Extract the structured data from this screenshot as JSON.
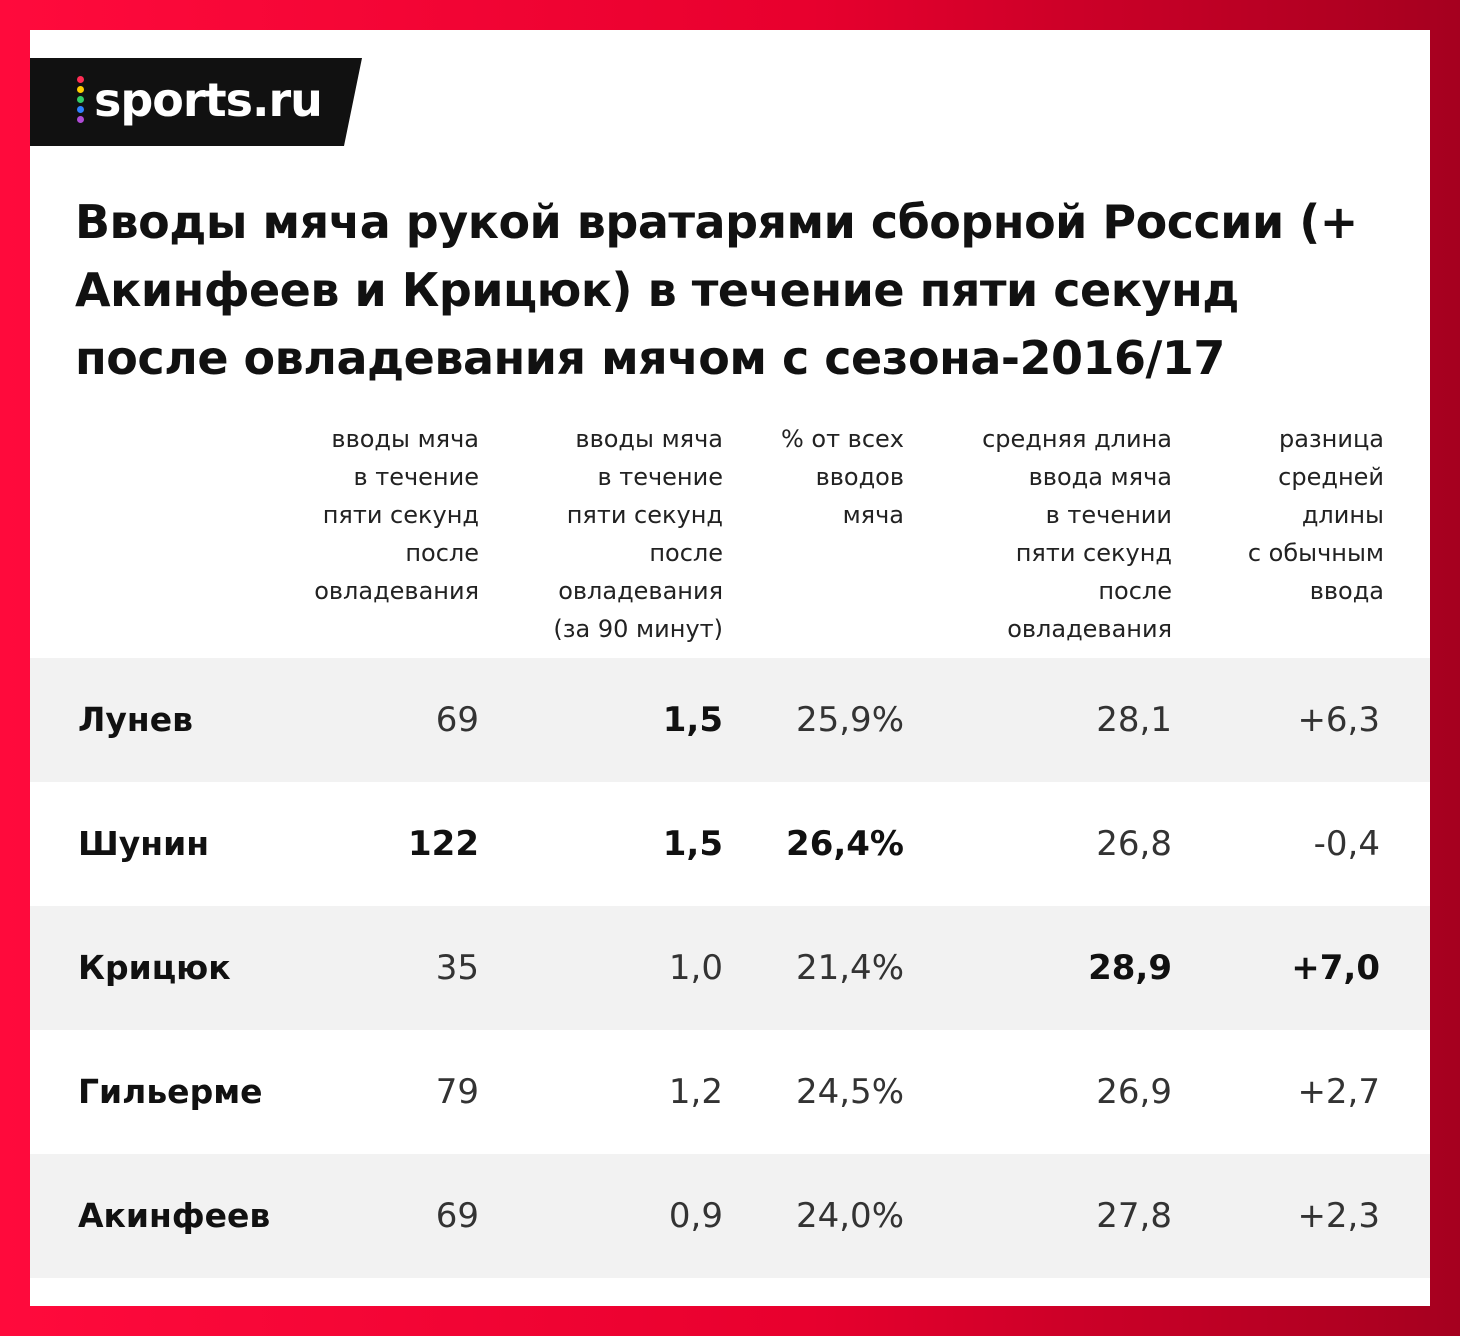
{
  "brand": {
    "logo_text": "sports.ru",
    "dot_colors": [
      "#ff2d55",
      "#ffcc00",
      "#33cc66",
      "#2f80ff",
      "#b04bd6"
    ]
  },
  "title": "Вводы мяча рукой вратарями сборной России (+ Акинфеев и Крицюк) в течение пяти секунд после овладевания мячом с сезона-2016/17",
  "columns": [
    "вводы мяча\nв течение\nпяти секунд\nпосле\nовладевания",
    "вводы мяча\nв течение\nпяти секунд\nпосле\nовладевания\n(за 90 минут)",
    "% от всех\nвводов\nмяча",
    "средняя длина\nввода мяча\nв течении\nпяти секунд\nпосле\nовладевания",
    "разница\nсредней\nдлины\nс обычным\nввода"
  ],
  "rows": [
    {
      "name": "Лунев",
      "cells": [
        "69",
        "1,5",
        "25,9%",
        "28,1",
        "+6,3"
      ],
      "bold": [
        false,
        true,
        false,
        false,
        false
      ]
    },
    {
      "name": "Шунин",
      "cells": [
        "122",
        "1,5",
        "26,4%",
        "26,8",
        "-0,4"
      ],
      "bold": [
        true,
        true,
        true,
        false,
        false
      ]
    },
    {
      "name": "Крицюк",
      "cells": [
        "35",
        "1,0",
        "21,4%",
        "28,9",
        "+7,0"
      ],
      "bold": [
        false,
        false,
        false,
        true,
        true
      ]
    },
    {
      "name": "Гильерме",
      "cells": [
        "79",
        "1,2",
        "24,5%",
        "26,9",
        "+2,7"
      ],
      "bold": [
        false,
        false,
        false,
        false,
        false
      ]
    },
    {
      "name": "Акинфеев",
      "cells": [
        "69",
        "0,9",
        "24,0%",
        "27,8",
        "+2,3"
      ],
      "bold": [
        false,
        false,
        false,
        false,
        false
      ]
    }
  ],
  "chart_data": {
    "type": "table",
    "title": "Вводы мяча рукой вратарями сборной России (+ Акинфеев и Крицюк) в течение пяти секунд после овладевания мячом с сезона-2016/17",
    "categories": [
      "Лунев",
      "Шунин",
      "Крицюк",
      "Гильерме",
      "Акинфеев"
    ],
    "series": [
      {
        "name": "вводы мяча в течение пяти секунд после овладевания",
        "values": [
          69,
          122,
          35,
          79,
          69
        ]
      },
      {
        "name": "вводы мяча в течение пяти секунд после овладевания (за 90 минут)",
        "values": [
          1.5,
          1.5,
          1.0,
          1.2,
          0.9
        ]
      },
      {
        "name": "% от всех вводов мяча",
        "values": [
          25.9,
          26.4,
          21.4,
          24.5,
          24.0
        ]
      },
      {
        "name": "средняя длина ввода мяча в течении пяти секунд после овладевания",
        "values": [
          28.1,
          26.8,
          28.9,
          26.9,
          27.8
        ]
      },
      {
        "name": "разница средней длины с обычным ввода",
        "values": [
          6.3,
          -0.4,
          7.0,
          2.7,
          2.3
        ]
      }
    ]
  }
}
